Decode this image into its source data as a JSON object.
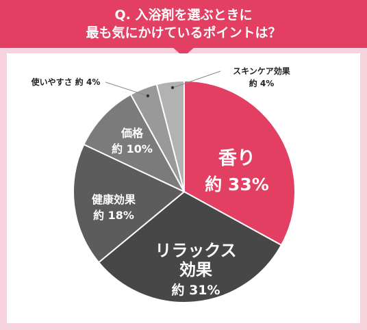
{
  "question": {
    "line1": "Q. 入浴剤を選ぶときに",
    "line2": "最も気にかけているポイントは？"
  },
  "colors": {
    "header": "#e23f62",
    "background": "#f7d3dd",
    "card": "#ffffff"
  },
  "chart_data": {
    "type": "pie",
    "title": "Q. 入浴剤を選ぶときに 最も気にかけているポイントは？",
    "slices": [
      {
        "name": "香り",
        "value": 33,
        "label": "約 33%",
        "color": "#e23f62",
        "text_color": "#ffffff"
      },
      {
        "name": "リラックス効果",
        "value": 31,
        "label": "約 31%",
        "color": "#474747",
        "text_color": "#ffffff"
      },
      {
        "name": "健康効果",
        "value": 18,
        "label": "約 18%",
        "color": "#5c5c5c",
        "text_color": "#ffffff"
      },
      {
        "name": "価格",
        "value": 10,
        "label": "約 10%",
        "color": "#7b7b7b",
        "text_color": "#ffffff"
      },
      {
        "name": "使いやすさ",
        "value": 4,
        "label": "約 4%",
        "color": "#999999",
        "text_color": "#333333"
      },
      {
        "name": "スキンケア効果",
        "value": 4,
        "label": "約 4%",
        "color": "#b2b2b2",
        "text_color": "#333333"
      }
    ]
  }
}
